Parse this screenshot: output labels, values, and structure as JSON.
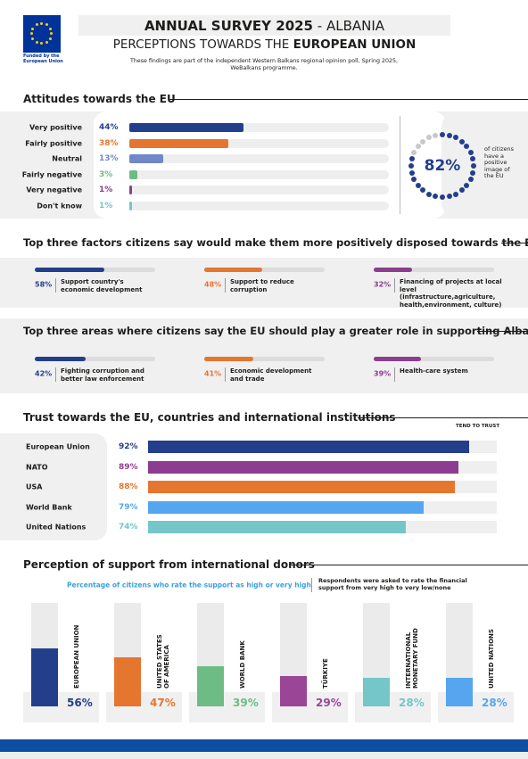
{
  "header": {
    "logo_caption": "Funded by the European Union",
    "title": "ANNUAL SURVEY 2025",
    "title_suffix": "- ALBANIA",
    "subtitle_prefix": "PERCEPTIONS TOWARDS THE",
    "subtitle_emphasis": "EUROPEAN UNION",
    "note": "These findings are part of the independent Western Balkans regional opinion poll, Spring 2025, WeBalkans programme."
  },
  "attitudes": {
    "title": "Attitudes towards the EU",
    "xlim": [
      0,
      100
    ],
    "rows": [
      {
        "label": "Very positive",
        "value": 44,
        "value_label": "44%",
        "color": "#233f8c"
      },
      {
        "label": "Fairly positive",
        "value": 38,
        "value_label": "38%",
        "color": "#e4762f"
      },
      {
        "label": "Neutral",
        "value": 13,
        "value_label": "13%",
        "color": "#6f88c9"
      },
      {
        "label": "Fairly negative",
        "value": 3,
        "value_label": "3%",
        "color": "#6dbb85"
      },
      {
        "label": "Very negative",
        "value": 1,
        "value_label": "1%",
        "color": "#8c3d8f"
      },
      {
        "label": "Don't know",
        "value": 1,
        "value_label": "1%",
        "color": "#74c6c9"
      }
    ],
    "highlight": {
      "value": 82,
      "value_label": "82%",
      "caption": "of citizens have a positive image of the EU",
      "color": "#233f8c"
    }
  },
  "factors": {
    "title": "Top three factors citizens say would make them more positively disposed towards the EU",
    "xlim": [
      0,
      100
    ],
    "items": [
      {
        "value": 58,
        "value_label": "58%",
        "label": "Support country's economic development",
        "color": "#233f8c"
      },
      {
        "value": 48,
        "value_label": "48%",
        "label": "Support to reduce corruption",
        "color": "#e4762f"
      },
      {
        "value": 32,
        "value_label": "32%",
        "label": "Financing of projects at local level (infrastructure,agriculture, health,environment, culture)",
        "color": "#8c3d8f"
      }
    ]
  },
  "areas": {
    "title": "Top three areas where citizens say the EU should play a greater role in supporting Albania",
    "xlim": [
      0,
      100
    ],
    "items": [
      {
        "value": 42,
        "value_label": "42%",
        "label": "Fighting corruption and better law enforcement",
        "color": "#233f8c"
      },
      {
        "value": 41,
        "value_label": "41%",
        "label": "Economic development and trade",
        "color": "#e4762f"
      },
      {
        "value": 39,
        "value_label": "39%",
        "label": "Health-care system",
        "color": "#8c3d8f"
      }
    ]
  },
  "trust": {
    "title": "Trust towards the EU, countries and international institutions",
    "column_label": "TEND TO TRUST",
    "xlim": [
      0,
      100
    ],
    "rows": [
      {
        "label": "European Union",
        "value": 92,
        "value_label": "92%",
        "color": "#233f8c"
      },
      {
        "label": "NATO",
        "value": 89,
        "value_label": "89%",
        "color": "#8c3d8f"
      },
      {
        "label": "USA",
        "value": 88,
        "value_label": "88%",
        "color": "#e4762f"
      },
      {
        "label": "World Bank",
        "value": 79,
        "value_label": "79%",
        "color": "#55a6ee"
      },
      {
        "label": "United Nations",
        "value": 74,
        "value_label": "74%",
        "color": "#74c6c9"
      }
    ]
  },
  "donors": {
    "title": "Perception of support from international donors",
    "subtitle": "Percentage of citizens who rate the support as high or very high",
    "note": "Respondents were asked to rate the financial support from very high to very low/none",
    "ylim": [
      0,
      100
    ],
    "items": [
      {
        "name_lines": [
          "EUROPEAN UNION"
        ],
        "value": 56,
        "value_label": "56%",
        "color": "#233f8c"
      },
      {
        "name_lines": [
          "UNITED STATES",
          "OF AMERICA"
        ],
        "value": 47,
        "value_label": "47%",
        "color": "#e4762f"
      },
      {
        "name_lines": [
          "WORLD BANK"
        ],
        "value": 39,
        "value_label": "39%",
        "color": "#6dbb85"
      },
      {
        "name_lines": [
          "TÜRKIYE"
        ],
        "value": 29,
        "value_label": "29%",
        "color": "#9a4596"
      },
      {
        "name_lines": [
          "INTERNATIONAL",
          "MONETARY FUND"
        ],
        "value": 28,
        "value_label": "28%",
        "color": "#74c6c9"
      },
      {
        "name_lines": [
          "UNITED NATIONS"
        ],
        "value": 28,
        "value_label": "28%",
        "color": "#55a6ee"
      }
    ]
  }
}
